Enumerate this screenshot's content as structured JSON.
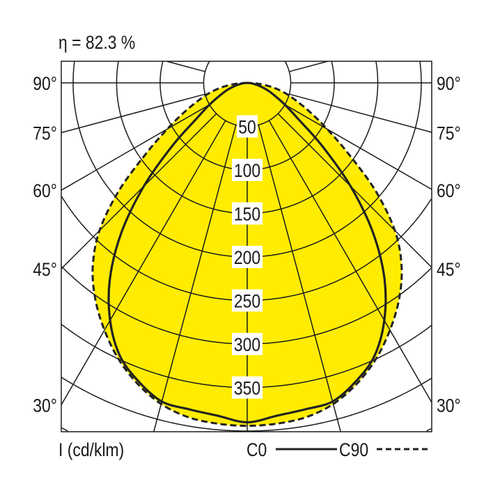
{
  "chart_data": {
    "type": "polar-line",
    "title": "η = 82.3 %",
    "unit_label": "I (cd/klm)",
    "angle_ticks": [
      "90°",
      "75°",
      "60°",
      "45°",
      "30°"
    ],
    "angle_tick_values": [
      90,
      75,
      60,
      45,
      30
    ],
    "radial_ticks": [
      "50",
      "100",
      "150",
      "200",
      "250",
      "300",
      "350"
    ],
    "radial_tick_values": [
      50,
      100,
      150,
      200,
      250,
      300,
      350
    ],
    "angles_deg": [
      0,
      5,
      10,
      15,
      20,
      25,
      30,
      35,
      40,
      45,
      50,
      55,
      60,
      65,
      70,
      75,
      80,
      85,
      90
    ],
    "symmetric": true,
    "series": [
      {
        "name": "C0",
        "style": "solid",
        "values": [
          390,
          384,
          381,
          379,
          365,
          346,
          315,
          275,
          225,
          168,
          112,
          70,
          50,
          35,
          25,
          16,
          9,
          4,
          0
        ]
      },
      {
        "name": "C90",
        "style": "dashed",
        "filled": true,
        "values": [
          394,
          393,
          390,
          382,
          368,
          350,
          328,
          304,
          276,
          240,
          192,
          142,
          106,
          80,
          60,
          45,
          30,
          14,
          0
        ]
      }
    ],
    "colors": {
      "fill": "#FFEC00",
      "line": "#222222",
      "grid": "#1a1a1a"
    }
  }
}
